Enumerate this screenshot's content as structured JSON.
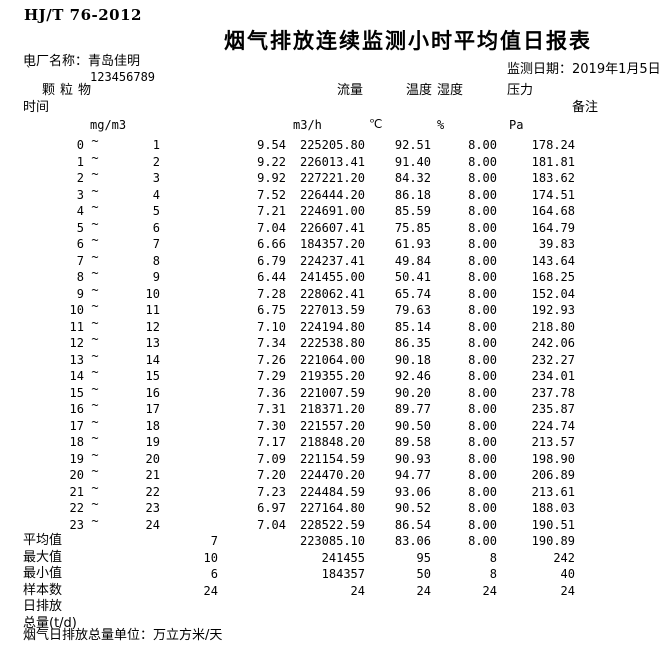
{
  "page": {
    "standard": "HJ/T 76-2012",
    "title": "烟气排放连续监测小时平均值日报表",
    "plant_name_line": "电厂名称：青岛佳明",
    "tick_mark": "`",
    "plant_code": "123456789",
    "monitor_date_line": "监测日期：2019年1月5日"
  },
  "glyphs": {
    "tilde": "~"
  },
  "header": {
    "pm": "颗粒物",
    "time": "时间",
    "flow": "流量",
    "temp": "温度",
    "humidity": "湿度",
    "pressure": "压力",
    "remark": "备注",
    "unit_pm": "mg/m3",
    "unit_flow": "m3/h",
    "unit_temp": "℃",
    "unit_humidity": "%",
    "unit_pressure": "Pa"
  },
  "table": {
    "rows": [
      {
        "start": "0",
        "end": "1",
        "pm": "9.54",
        "flow": "225205.80",
        "temp": "92.51",
        "hum": "8.00",
        "press": "178.24"
      },
      {
        "start": "1",
        "end": "2",
        "pm": "9.22",
        "flow": "226013.41",
        "temp": "91.40",
        "hum": "8.00",
        "press": "181.81"
      },
      {
        "start": "2",
        "end": "3",
        "pm": "9.92",
        "flow": "227221.20",
        "temp": "84.32",
        "hum": "8.00",
        "press": "183.62"
      },
      {
        "start": "3",
        "end": "4",
        "pm": "7.52",
        "flow": "226444.20",
        "temp": "86.18",
        "hum": "8.00",
        "press": "174.51"
      },
      {
        "start": "4",
        "end": "5",
        "pm": "7.21",
        "flow": "224691.00",
        "temp": "85.59",
        "hum": "8.00",
        "press": "164.68"
      },
      {
        "start": "5",
        "end": "6",
        "pm": "7.04",
        "flow": "226607.41",
        "temp": "75.85",
        "hum": "8.00",
        "press": "164.79"
      },
      {
        "start": "6",
        "end": "7",
        "pm": "6.66",
        "flow": "184357.20",
        "temp": "61.93",
        "hum": "8.00",
        "press": "39.83"
      },
      {
        "start": "7",
        "end": "8",
        "pm": "6.79",
        "flow": "224237.41",
        "temp": "49.84",
        "hum": "8.00",
        "press": "143.64"
      },
      {
        "start": "8",
        "end": "9",
        "pm": "6.44",
        "flow": "241455.00",
        "temp": "50.41",
        "hum": "8.00",
        "press": "168.25"
      },
      {
        "start": "9",
        "end": "10",
        "pm": "7.28",
        "flow": "228062.41",
        "temp": "65.74",
        "hum": "8.00",
        "press": "152.04"
      },
      {
        "start": "10",
        "end": "11",
        "pm": "6.75",
        "flow": "227013.59",
        "temp": "79.63",
        "hum": "8.00",
        "press": "192.93"
      },
      {
        "start": "11",
        "end": "12",
        "pm": "7.10",
        "flow": "224194.80",
        "temp": "85.14",
        "hum": "8.00",
        "press": "218.80"
      },
      {
        "start": "12",
        "end": "13",
        "pm": "7.34",
        "flow": "222538.80",
        "temp": "86.35",
        "hum": "8.00",
        "press": "242.06"
      },
      {
        "start": "13",
        "end": "14",
        "pm": "7.26",
        "flow": "221064.00",
        "temp": "90.18",
        "hum": "8.00",
        "press": "232.27"
      },
      {
        "start": "14",
        "end": "15",
        "pm": "7.29",
        "flow": "219355.20",
        "temp": "92.46",
        "hum": "8.00",
        "press": "234.01"
      },
      {
        "start": "15",
        "end": "16",
        "pm": "7.36",
        "flow": "221007.59",
        "temp": "90.20",
        "hum": "8.00",
        "press": "237.78"
      },
      {
        "start": "16",
        "end": "17",
        "pm": "7.31",
        "flow": "218371.20",
        "temp": "89.77",
        "hum": "8.00",
        "press": "235.87"
      },
      {
        "start": "17",
        "end": "18",
        "pm": "7.30",
        "flow": "221557.20",
        "temp": "90.50",
        "hum": "8.00",
        "press": "224.74"
      },
      {
        "start": "18",
        "end": "19",
        "pm": "7.17",
        "flow": "218848.20",
        "temp": "89.58",
        "hum": "8.00",
        "press": "213.57"
      },
      {
        "start": "19",
        "end": "20",
        "pm": "7.09",
        "flow": "221154.59",
        "temp": "90.93",
        "hum": "8.00",
        "press": "198.90"
      },
      {
        "start": "20",
        "end": "21",
        "pm": "7.20",
        "flow": "224470.20",
        "temp": "94.77",
        "hum": "8.00",
        "press": "206.89"
      },
      {
        "start": "21",
        "end": "22",
        "pm": "7.23",
        "flow": "224484.59",
        "temp": "93.06",
        "hum": "8.00",
        "press": "213.61"
      },
      {
        "start": "22",
        "end": "23",
        "pm": "6.97",
        "flow": "227164.80",
        "temp": "90.52",
        "hum": "8.00",
        "press": "188.03"
      },
      {
        "start": "23",
        "end": "24",
        "pm": "7.04",
        "flow": "228522.59",
        "temp": "86.54",
        "hum": "8.00",
        "press": "190.51"
      }
    ],
    "summary": [
      {
        "label": "平均值",
        "pm": "7",
        "flow": "223085.10",
        "temp": "83.06",
        "hum": "8.00",
        "press": "190.89"
      },
      {
        "label": "最大值",
        "pm": "10",
        "flow": "241455",
        "temp": "95",
        "hum": "8",
        "press": "242"
      },
      {
        "label": "最小值",
        "pm": "6",
        "flow": "184357",
        "temp": "50",
        "hum": "8",
        "press": "40"
      },
      {
        "label": "样本数",
        "pm": "24",
        "flow": "24",
        "temp": "24",
        "hum": "24",
        "press": "24"
      },
      {
        "label": "日排放",
        "pm": "",
        "flow": "",
        "temp": "",
        "hum": "",
        "press": ""
      },
      {
        "label": "总量(t/d)",
        "pm": "",
        "flow": "",
        "temp": "",
        "hum": "",
        "press": ""
      }
    ]
  },
  "footer": {
    "note": "烟气日排放总量单位：万立方米/天"
  }
}
